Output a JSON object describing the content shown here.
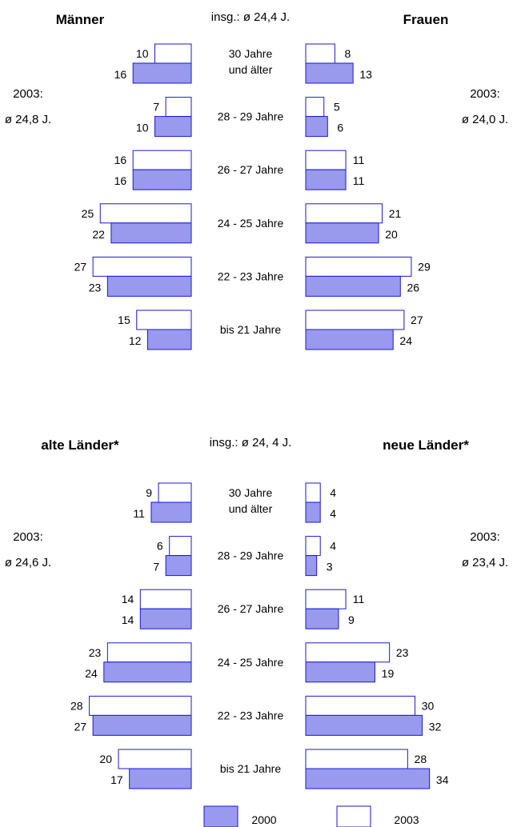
{
  "colors": {
    "bar_2000": "#9999ee",
    "bar_2003": "#ffffff",
    "outline": "#1a1acc"
  },
  "legend": [
    {
      "series": "2000",
      "color": "#9999ee"
    },
    {
      "series": "2003",
      "color": "#ffffff"
    }
  ],
  "chart_data": [
    {
      "type": "bar",
      "orientation": "horizontal-butterfly",
      "overall_label": "insg.: ø 24,4 J.",
      "categories": [
        "30 Jahre\nund älter",
        "28 - 29 Jahre",
        "26 - 27 Jahre",
        "24 - 25 Jahre",
        "22 - 23 Jahre",
        "bis 21 Jahre"
      ],
      "left": {
        "title": "Männer",
        "avg_label": [
          "2003:",
          "ø 24,8 J."
        ],
        "series": [
          {
            "name": "2003",
            "values": [
              10,
              7,
              16,
              25,
              27,
              15
            ]
          },
          {
            "name": "2000",
            "values": [
              16,
              10,
              16,
              22,
              23,
              12
            ]
          }
        ]
      },
      "right": {
        "title": "Frauen",
        "avg_label": [
          "2003:",
          "ø 24,0 J."
        ],
        "series": [
          {
            "name": "2003",
            "values": [
              8,
              5,
              11,
              21,
              29,
              27
            ]
          },
          {
            "name": "2000",
            "values": [
              13,
              6,
              11,
              20,
              26,
              24
            ]
          }
        ]
      }
    },
    {
      "type": "bar",
      "orientation": "horizontal-butterfly",
      "overall_label": "insg.: ø 24, 4 J.",
      "categories": [
        "30 Jahre\nund älter",
        "28 - 29 Jahre",
        "26 - 27 Jahre",
        "24 - 25 Jahre",
        "22 - 23 Jahre",
        "bis 21 Jahre"
      ],
      "left": {
        "title": "alte Länder*",
        "avg_label": [
          "2003:",
          "ø 24,6 J."
        ],
        "series": [
          {
            "name": "2003",
            "values": [
              9,
              6,
              14,
              23,
              28,
              20
            ]
          },
          {
            "name": "2000",
            "values": [
              11,
              7,
              14,
              24,
              27,
              17
            ]
          }
        ]
      },
      "right": {
        "title": "neue Länder*",
        "avg_label": [
          "2003:",
          "ø 23,4 J."
        ],
        "series": [
          {
            "name": "2003",
            "values": [
              4,
              4,
              11,
              23,
              30,
              28
            ]
          },
          {
            "name": "2000",
            "values": [
              4,
              3,
              9,
              19,
              32,
              34
            ]
          }
        ]
      }
    }
  ]
}
